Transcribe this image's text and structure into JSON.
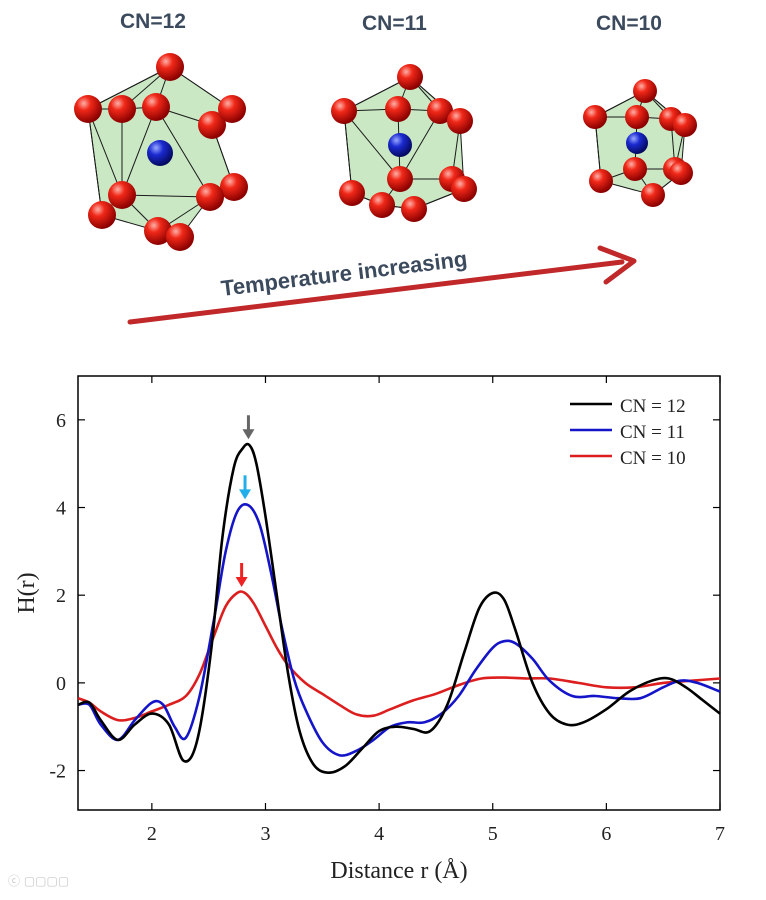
{
  "clusters": [
    {
      "label": "CN=12"
    },
    {
      "label": "CN=11"
    },
    {
      "label": "CN=10"
    }
  ],
  "arrow_caption": "Temperature increasing",
  "colors": {
    "atom_red": "#e01010",
    "atom_blue": "#1020c0",
    "cage_fill": "#b8e0b0",
    "arrow": "#c0282a",
    "label": "#3c4a5e"
  },
  "chart_data": {
    "type": "line",
    "xlabel": "Distance r (Å)",
    "ylabel": "H(r)",
    "xlim": [
      1.35,
      7.0
    ],
    "ylim": [
      -2.9,
      7.0
    ],
    "xticks": [
      2,
      3,
      4,
      5,
      6,
      7
    ],
    "yticks": [
      -2,
      0,
      2,
      4,
      6
    ],
    "legend_position": "top-right",
    "grid": false,
    "series": [
      {
        "name": "CN = 12",
        "color": "#000000",
        "x": [
          1.35,
          1.45,
          1.55,
          1.7,
          1.85,
          2.0,
          2.15,
          2.28,
          2.4,
          2.52,
          2.62,
          2.72,
          2.8,
          2.86,
          2.92,
          3.0,
          3.1,
          3.2,
          3.3,
          3.42,
          3.55,
          3.7,
          3.85,
          4.0,
          4.15,
          4.3,
          4.45,
          4.6,
          4.75,
          4.88,
          5.0,
          5.1,
          5.2,
          5.35,
          5.5,
          5.65,
          5.8,
          6.0,
          6.2,
          6.4,
          6.55,
          6.7,
          6.85,
          7.0
        ],
        "y": [
          -0.5,
          -0.45,
          -0.85,
          -1.3,
          -0.95,
          -0.7,
          -0.95,
          -1.78,
          -1.3,
          0.7,
          3.3,
          4.9,
          5.35,
          5.42,
          5.0,
          3.8,
          2.0,
          0.2,
          -1.1,
          -1.85,
          -2.05,
          -1.9,
          -1.5,
          -1.1,
          -1.0,
          -1.05,
          -1.1,
          -0.5,
          0.7,
          1.7,
          2.05,
          1.9,
          1.2,
          0.0,
          -0.7,
          -0.95,
          -0.9,
          -0.6,
          -0.2,
          0.05,
          0.1,
          -0.1,
          -0.4,
          -0.7
        ]
      },
      {
        "name": "CN = 11",
        "color": "#1414c8",
        "x": [
          1.35,
          1.45,
          1.55,
          1.7,
          1.85,
          2.0,
          2.1,
          2.2,
          2.3,
          2.42,
          2.55,
          2.65,
          2.75,
          2.85,
          2.95,
          3.05,
          3.15,
          3.25,
          3.35,
          3.5,
          3.65,
          3.8,
          3.95,
          4.1,
          4.25,
          4.4,
          4.55,
          4.7,
          4.85,
          5.0,
          5.1,
          5.2,
          5.35,
          5.5,
          5.7,
          5.9,
          6.1,
          6.3,
          6.5,
          6.65,
          6.8,
          7.0
        ],
        "y": [
          -0.5,
          -0.5,
          -0.95,
          -1.3,
          -0.85,
          -0.45,
          -0.5,
          -1.0,
          -1.25,
          -0.3,
          1.5,
          3.0,
          3.9,
          4.05,
          3.6,
          2.5,
          1.2,
          0.1,
          -0.6,
          -1.35,
          -1.65,
          -1.55,
          -1.3,
          -1.0,
          -0.9,
          -0.9,
          -0.7,
          -0.3,
          0.3,
          0.8,
          0.95,
          0.9,
          0.55,
          0.05,
          -0.3,
          -0.3,
          -0.35,
          -0.35,
          -0.1,
          0.05,
          0.0,
          -0.2
        ]
      },
      {
        "name": "CN = 10",
        "color": "#dc1e1e",
        "x": [
          1.35,
          1.45,
          1.55,
          1.7,
          1.85,
          2.0,
          2.15,
          2.3,
          2.42,
          2.55,
          2.65,
          2.75,
          2.82,
          2.9,
          3.0,
          3.1,
          3.2,
          3.35,
          3.5,
          3.65,
          3.8,
          3.95,
          4.1,
          4.3,
          4.5,
          4.7,
          4.9,
          5.1,
          5.3,
          5.5,
          5.75,
          6.0,
          6.25,
          6.5,
          6.75,
          7.0
        ],
        "y": [
          -0.35,
          -0.45,
          -0.65,
          -0.85,
          -0.8,
          -0.65,
          -0.5,
          -0.3,
          0.2,
          1.1,
          1.75,
          2.05,
          2.05,
          1.8,
          1.3,
          0.8,
          0.4,
          0.0,
          -0.25,
          -0.5,
          -0.72,
          -0.75,
          -0.6,
          -0.4,
          -0.25,
          -0.05,
          0.1,
          0.12,
          0.1,
          0.1,
          0.0,
          -0.1,
          -0.1,
          0.0,
          0.05,
          0.1
        ]
      }
    ],
    "annotations": [
      {
        "type": "arrow",
        "x": 2.85,
        "y": 5.42,
        "color": "#666666"
      },
      {
        "type": "arrow",
        "x": 2.82,
        "y": 4.05,
        "color": "#22aee8"
      },
      {
        "type": "arrow",
        "x": 2.79,
        "y": 2.05,
        "color": "#ee2222"
      }
    ]
  }
}
